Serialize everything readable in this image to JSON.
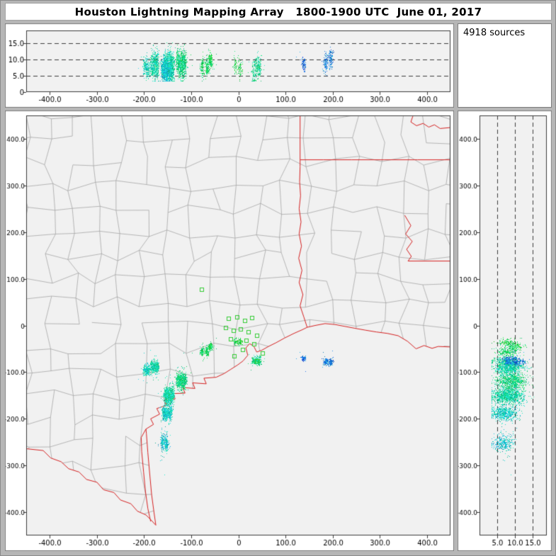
{
  "window": {
    "title": "Houston Lightning Mapping Array   1800-1900 UTC  June 01, 2017",
    "bg_color": "#b6b6b6"
  },
  "sources_panel": {
    "label": "4918 sources"
  },
  "chart_data": {
    "type": "scatter",
    "title": "Houston Lightning Mapping Array 1800-1900 UTC June 01, 2017",
    "n_sources": 4918,
    "legend_position": "none",
    "grid": "dashed altitude gridlines only",
    "axes": {
      "ew_range_km": [
        -450,
        450
      ],
      "ns_range_km": [
        -450,
        450
      ],
      "alt_range_km": [
        0,
        19
      ],
      "ew_ticks": {
        "values": [
          -400,
          -300,
          -200,
          -100,
          0,
          100,
          200,
          300,
          400
        ],
        "labels": [
          "-400.0",
          "-300.0",
          "-200.0",
          "-100.0",
          "0",
          "100.0",
          "200.0",
          "300.0",
          "400.0"
        ]
      },
      "ns_ticks": {
        "values": [
          400,
          300,
          200,
          100,
          0,
          -100,
          -200,
          -300,
          -400
        ],
        "labels": [
          "400.0",
          "300.0",
          "200.0",
          "100.0",
          "0",
          "-100.0",
          "-200.0",
          "-300.0",
          "-400.0"
        ]
      },
      "alt_ticks": {
        "values": [
          0,
          5,
          10,
          15
        ],
        "labels": [
          "0",
          "5.0",
          "10.0",
          "15.0"
        ]
      },
      "alt_ticks_right_panel": {
        "values": [
          5,
          10,
          15
        ],
        "labels": [
          "5.0",
          "10.0",
          "15.0"
        ]
      },
      "alt_dashed_gridlines_km": [
        5,
        10,
        15
      ]
    },
    "style": {
      "plot_bg": "#f1f1f1",
      "frame_color": "#7d7d7d",
      "axis_color": "#3a3a3a",
      "dash_color": "#3c3c3c",
      "county_color": "#a0a0a0",
      "state_border_color": "#d42020",
      "station_color": "#33cc33",
      "point_hue_start": 235,
      "point_hue_end": 95
    },
    "stations_km": [
      [
        -78,
        76
      ],
      [
        -20,
        14
      ],
      [
        -2,
        18
      ],
      [
        14,
        10
      ],
      [
        30,
        16
      ],
      [
        -26,
        -6
      ],
      [
        -10,
        -12
      ],
      [
        6,
        -8
      ],
      [
        22,
        -14
      ],
      [
        40,
        -22
      ],
      [
        -16,
        -30
      ],
      [
        2,
        -36
      ],
      [
        18,
        -32
      ],
      [
        34,
        -40
      ],
      [
        10,
        -52
      ],
      [
        52,
        -60
      ],
      [
        40,
        -76
      ],
      [
        -8,
        -66
      ]
    ],
    "source_clusters": [
      {
        "ew": -195,
        "ns": -95,
        "alt": 8.0,
        "sx": 3,
        "sy": 6,
        "sa": 1.7,
        "cols": 2,
        "n": 250,
        "t": 0.45
      },
      {
        "ew": -178,
        "ns": -88,
        "alt": 8.5,
        "sx": 5,
        "sy": 6,
        "sa": 2.0,
        "cols": 3,
        "n": 620,
        "t": 0.5
      },
      {
        "ew": -148,
        "ns": -150,
        "alt": 8.5,
        "sx": 7,
        "sy": 9,
        "sa": 2.2,
        "cols": 4,
        "n": 1150,
        "t": 0.5
      },
      {
        "ew": -152,
        "ns": -188,
        "alt": 7.5,
        "sx": 6,
        "sy": 7,
        "sa": 1.8,
        "cols": 3,
        "n": 640,
        "t": 0.42
      },
      {
        "ew": -157,
        "ns": -252,
        "alt": 6.5,
        "sx": 4,
        "sy": 9,
        "sa": 1.5,
        "cols": 2,
        "n": 340,
        "t": 0.38
      },
      {
        "ew": -122,
        "ns": -118,
        "alt": 9.0,
        "sx": 7,
        "sy": 8,
        "sa": 2.0,
        "cols": 4,
        "n": 830,
        "t": 0.58
      },
      {
        "ew": -72,
        "ns": -55,
        "alt": 8.0,
        "sx": 5,
        "sy": 5,
        "sa": 1.6,
        "cols": 2,
        "n": 210,
        "t": 0.65
      },
      {
        "ew": -2,
        "ns": -35,
        "alt": 7.5,
        "sx": 5,
        "sy": 4,
        "sa": 1.5,
        "cols": 2,
        "n": 120,
        "t": 0.7
      },
      {
        "ew": 38,
        "ns": -75,
        "alt": 7.0,
        "sx": 6,
        "sy": 5,
        "sa": 1.7,
        "cols": 3,
        "n": 280,
        "t": 0.55
      },
      {
        "ew": 138,
        "ns": -70,
        "alt": 9.0,
        "sx": 3,
        "sy": 3,
        "sa": 1.0,
        "cols": 1,
        "n": 90,
        "t": 0.15
      },
      {
        "ew": 190,
        "ns": -78,
        "alt": 9.5,
        "sx": 5,
        "sy": 4,
        "sa": 1.4,
        "cols": 2,
        "n": 230,
        "t": 0.2
      },
      {
        "ew": -60,
        "ns": -45,
        "alt": 8.5,
        "sx": 3,
        "sy": 3,
        "sa": 1.2,
        "cols": 1,
        "n": 158,
        "t": 0.68
      }
    ],
    "map_layers_km": {
      "rio_grande": [
        [
          -470,
          -262
        ],
        [
          -414,
          -268
        ],
        [
          -398,
          -284
        ],
        [
          -376,
          -292
        ],
        [
          -360,
          -307
        ],
        [
          -338,
          -314
        ],
        [
          -322,
          -330
        ],
        [
          -300,
          -336
        ],
        [
          -286,
          -352
        ],
        [
          -264,
          -358
        ],
        [
          -250,
          -374
        ],
        [
          -228,
          -382
        ],
        [
          -214,
          -398
        ],
        [
          -196,
          -406
        ],
        [
          -186,
          -416
        ],
        [
          -175,
          -428
        ]
      ],
      "coastline": [
        [
          -175,
          -428
        ],
        [
          -179,
          -400
        ],
        [
          -184,
          -362
        ],
        [
          -188,
          -318
        ],
        [
          -192,
          -272
        ],
        [
          -195,
          -232
        ],
        [
          -196,
          -222
        ],
        [
          -180,
          -212
        ],
        [
          -186,
          -200
        ],
        [
          -167,
          -190
        ],
        [
          -173,
          -178
        ],
        [
          -152,
          -171
        ],
        [
          -157,
          -159
        ],
        [
          -134,
          -157
        ],
        [
          -139,
          -146
        ],
        [
          -113,
          -145
        ],
        [
          -118,
          -133
        ],
        [
          -92,
          -135
        ],
        [
          -97,
          -123
        ],
        [
          -68,
          -125
        ],
        [
          -73,
          -113
        ],
        [
          -47,
          -111
        ],
        [
          -30,
          -103
        ],
        [
          -16,
          -94
        ],
        [
          -2,
          -85
        ],
        [
          10,
          -76
        ],
        [
          20,
          -64
        ],
        [
          16,
          -48
        ],
        [
          24,
          -39
        ],
        [
          33,
          -45
        ],
        [
          39,
          -57
        ],
        [
          50,
          -53
        ],
        [
          64,
          -45
        ],
        [
          80,
          -37
        ],
        [
          98,
          -27
        ],
        [
          118,
          -17
        ],
        [
          136,
          -9
        ],
        [
          146,
          -4
        ],
        [
          163,
          0
        ],
        [
          184,
          4
        ],
        [
          205,
          2
        ],
        [
          226,
          -2
        ],
        [
          247,
          -6
        ],
        [
          269,
          -10
        ],
        [
          293,
          -14
        ],
        [
          316,
          -17
        ],
        [
          339,
          -22
        ],
        [
          359,
          -34
        ],
        [
          377,
          -50
        ],
        [
          394,
          -43
        ],
        [
          411,
          -49
        ],
        [
          424,
          -45
        ],
        [
          448,
          -46
        ],
        [
          470,
          -50
        ]
      ],
      "laguna_shore": [
        [
          -186,
          -420
        ],
        [
          -192,
          -392
        ],
        [
          -197,
          -356
        ],
        [
          -201,
          -314
        ],
        [
          -205,
          -270
        ],
        [
          -206,
          -240
        ],
        [
          -196,
          -222
        ]
      ],
      "tx_la_border": [
        [
          146,
          -4
        ],
        [
          139,
          18
        ],
        [
          131,
          42
        ],
        [
          137,
          66
        ],
        [
          129,
          92
        ],
        [
          135,
          118
        ],
        [
          128,
          144
        ],
        [
          134,
          170
        ],
        [
          129,
          196
        ],
        [
          133,
          222
        ],
        [
          129,
          250
        ],
        [
          132,
          278
        ],
        [
          130,
          308
        ],
        [
          131,
          340
        ],
        [
          131,
          355
        ],
        [
          131,
          470
        ]
      ],
      "ar_la_border": [
        [
          131,
          355
        ],
        [
          180,
          355
        ],
        [
          240,
          355
        ],
        [
          310,
          355
        ],
        [
          380,
          355
        ],
        [
          470,
          355
        ]
      ],
      "ms_river": [
        [
          353,
          236
        ],
        [
          366,
          214
        ],
        [
          355,
          196
        ],
        [
          369,
          180
        ],
        [
          357,
          163
        ],
        [
          367,
          148
        ],
        [
          360,
          138
        ]
      ],
      "la_ms_border": [
        [
          360,
          138
        ],
        [
          470,
          138
        ]
      ],
      "red_river": [
        [
          362,
          470
        ],
        [
          370,
          448
        ],
        [
          366,
          436
        ],
        [
          378,
          428
        ],
        [
          392,
          433
        ],
        [
          404,
          425
        ],
        [
          416,
          430
        ],
        [
          428,
          422
        ],
        [
          470,
          426
        ]
      ]
    },
    "county_mesh": {
      "spacing_km": 50,
      "jitter_km": 13,
      "seed": 11,
      "skip_fraction": 0.12
    }
  }
}
